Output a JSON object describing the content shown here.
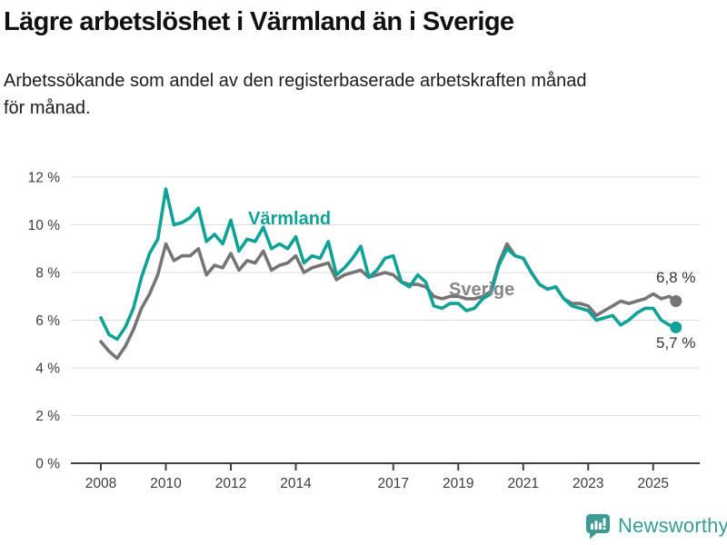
{
  "header": {
    "title": "Lägre arbetslöshet i Värmland än i Sverige",
    "subtitle_line1": "Arbetssökande som andel av den registerbaserade arbetskraften månad",
    "subtitle_line2": "för månad."
  },
  "chart_data": {
    "type": "line",
    "title": "Lägre arbetslöshet i Värmland än i Sverige",
    "xlabel": "",
    "ylabel": "",
    "unit": "%",
    "xlim": [
      2007.1,
      2026.4
    ],
    "ylim": [
      0,
      12
    ],
    "grid": "horizontal-only",
    "legend_position": "inline-labels",
    "y_ticks": [
      {
        "v": 12,
        "label": "12 %"
      },
      {
        "v": 10,
        "label": "10 %"
      },
      {
        "v": 8,
        "label": "8 %"
      },
      {
        "v": 6,
        "label": "6 %"
      },
      {
        "v": 4,
        "label": "4 %"
      },
      {
        "v": 2,
        "label": "2 %"
      },
      {
        "v": 0,
        "label": "0 %"
      }
    ],
    "x_ticks": [
      {
        "v": 2008,
        "label": "2008"
      },
      {
        "v": 2010,
        "label": "2010"
      },
      {
        "v": 2012,
        "label": "2012"
      },
      {
        "v": 2014,
        "label": "2014"
      },
      {
        "v": 2017,
        "label": "2017"
      },
      {
        "v": 2019,
        "label": "2019"
      },
      {
        "v": 2021,
        "label": "2021"
      },
      {
        "v": 2023,
        "label": "2023"
      },
      {
        "v": 2025,
        "label": "2025"
      }
    ],
    "x": [
      2008,
      2008.25,
      2008.5,
      2008.75,
      2009,
      2009.25,
      2009.5,
      2009.75,
      2010,
      2010.25,
      2010.5,
      2010.75,
      2011,
      2011.25,
      2011.5,
      2011.75,
      2012,
      2012.25,
      2012.5,
      2012.75,
      2013,
      2013.25,
      2013.5,
      2013.75,
      2014,
      2014.25,
      2014.5,
      2014.75,
      2015,
      2015.25,
      2015.5,
      2015.75,
      2016,
      2016.25,
      2016.5,
      2016.75,
      2017,
      2017.25,
      2017.5,
      2017.75,
      2018,
      2018.25,
      2018.5,
      2018.75,
      2019,
      2019.25,
      2019.5,
      2019.75,
      2020,
      2020.25,
      2020.5,
      2020.75,
      2021,
      2021.25,
      2021.5,
      2021.75,
      2022,
      2022.25,
      2022.5,
      2022.75,
      2023,
      2023.25,
      2023.5,
      2023.75,
      2024,
      2024.25,
      2024.5,
      2024.75,
      2025,
      2025.25,
      2025.5,
      2025.7
    ],
    "series": [
      {
        "name": "Sverige",
        "color": "#757575",
        "end_label": "6,8 %",
        "values": [
          5.1,
          4.7,
          4.4,
          4.9,
          5.6,
          6.5,
          7.1,
          7.9,
          9.2,
          8.5,
          8.7,
          8.7,
          9.0,
          7.9,
          8.3,
          8.2,
          8.8,
          8.1,
          8.5,
          8.4,
          8.9,
          8.1,
          8.3,
          8.4,
          8.7,
          8.0,
          8.2,
          8.3,
          8.4,
          7.7,
          7.9,
          8.0,
          8.1,
          7.8,
          7.9,
          8.0,
          7.9,
          7.6,
          7.5,
          7.5,
          7.4,
          7.0,
          6.9,
          7.0,
          7.0,
          6.9,
          6.9,
          7.0,
          7.2,
          8.4,
          9.2,
          8.7,
          8.6,
          8.0,
          7.5,
          7.3,
          7.4,
          6.9,
          6.7,
          6.7,
          6.6,
          6.2,
          6.4,
          6.6,
          6.8,
          6.7,
          6.8,
          6.9,
          7.1,
          6.9,
          7.0,
          6.8
        ]
      },
      {
        "name": "Värmland",
        "color": "#10a197",
        "end_label": "5,7 %",
        "values": [
          6.1,
          5.4,
          5.2,
          5.7,
          6.5,
          7.8,
          8.8,
          9.4,
          11.5,
          10.0,
          10.1,
          10.3,
          10.7,
          9.3,
          9.6,
          9.2,
          10.2,
          8.9,
          9.4,
          9.3,
          9.9,
          9.0,
          9.2,
          9.0,
          9.5,
          8.4,
          8.7,
          8.6,
          9.3,
          7.9,
          8.2,
          8.6,
          9.1,
          7.8,
          8.1,
          8.6,
          8.7,
          7.6,
          7.4,
          7.9,
          7.6,
          6.6,
          6.5,
          6.7,
          6.7,
          6.4,
          6.5,
          6.9,
          7.1,
          8.3,
          9.0,
          8.7,
          8.6,
          8.0,
          7.5,
          7.3,
          7.4,
          6.9,
          6.6,
          6.5,
          6.4,
          6.0,
          6.1,
          6.2,
          5.8,
          6.0,
          6.3,
          6.5,
          6.5,
          6.0,
          5.8,
          5.7
        ]
      }
    ]
  },
  "footer": {
    "brand": "Newsworthy"
  },
  "colors": {
    "varmland": "#10a197",
    "sverige": "#757575",
    "gridline": "#dcdcdc",
    "axis": "#404040",
    "brand_teal": "#379c95"
  }
}
